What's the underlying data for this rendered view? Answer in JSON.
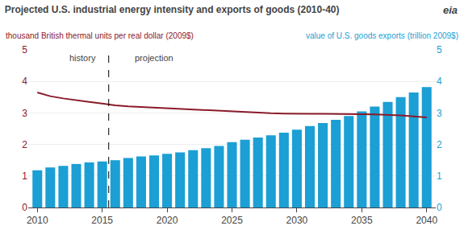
{
  "chart_data": {
    "type": "bar",
    "title": "Projected U.S. industrial energy intensity and exports of goods (2010-40)",
    "ylabel": "thousand British thermal units per real dollar (2009$)",
    "y2label": "value of U.S. goods exports (trillion 2009$)",
    "x": [
      2010,
      2011,
      2012,
      2013,
      2014,
      2015,
      2016,
      2017,
      2018,
      2019,
      2020,
      2021,
      2022,
      2023,
      2024,
      2025,
      2026,
      2027,
      2028,
      2029,
      2030,
      2031,
      2032,
      2033,
      2034,
      2035,
      2036,
      2037,
      2038,
      2039,
      2040
    ],
    "series": [
      {
        "type": "bar",
        "color": "#1b9fd4",
        "values": [
          1.18,
          1.27,
          1.32,
          1.38,
          1.43,
          1.46,
          1.5,
          1.57,
          1.62,
          1.65,
          1.7,
          1.75,
          1.82,
          1.88,
          1.95,
          2.07,
          2.15,
          2.22,
          2.29,
          2.37,
          2.47,
          2.58,
          2.68,
          2.78,
          2.9,
          3.05,
          3.2,
          3.35,
          3.5,
          3.65,
          3.82
        ]
      },
      {
        "type": "line",
        "color": "#8b1a2a",
        "axis": "y2",
        "values": [
          3.65,
          3.53,
          3.46,
          3.4,
          3.35,
          3.3,
          3.24,
          3.21,
          3.19,
          3.17,
          3.14,
          3.12,
          3.1,
          3.08,
          3.06,
          3.04,
          3.02,
          3.01,
          2.99,
          2.98,
          2.97,
          2.97,
          2.97,
          2.97,
          2.97,
          2.96,
          2.95,
          2.94,
          2.92,
          2.89,
          2.86
        ]
      }
    ],
    "xlim": [
      2009.3,
      2040.7
    ],
    "xticks": [
      2010,
      2015,
      2020,
      2025,
      2030,
      2035,
      2040
    ],
    "ylim": [
      0,
      5
    ],
    "yticks": [
      0,
      1,
      2,
      3,
      4,
      5
    ],
    "y2lim": [
      0,
      5
    ],
    "y2ticks": [
      0,
      1,
      2,
      3,
      4,
      5
    ],
    "grid": true,
    "divider": 2015.5,
    "annotations": [
      {
        "text": "history",
        "x": 2013.5,
        "y": 4.55
      },
      {
        "text": "projection",
        "x": 2019.0,
        "y": 4.55
      },
      {
        "text": "eia"
      }
    ]
  }
}
